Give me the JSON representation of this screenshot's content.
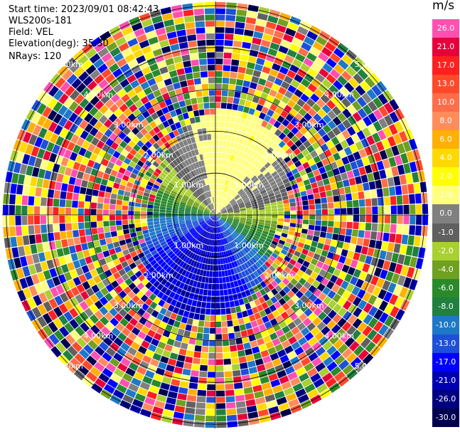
{
  "info": {
    "start_time": "Start time: 2023/09/01 08:42:43",
    "site": "WLS200s-181",
    "field": "Field: VEL",
    "elevation": "Elevation(deg): 35.30",
    "nrays": "NRays: 120"
  },
  "colorbar": {
    "unit": "m/s",
    "ticks": [
      "26.0",
      "21.0",
      "17.0",
      "13.0",
      "10.0",
      "8.0",
      "6.0",
      "4.0",
      "2.0",
      "1.0",
      "0.0",
      "-1.0",
      "-2.0",
      "-4.0",
      "-6.0",
      "-8.0",
      "-10.0",
      "-13.0",
      "-17.0",
      "-21.0",
      "-26.0",
      "-30.0"
    ],
    "colors": [
      "#ff4fb0",
      "#e8003a",
      "#ff2020",
      "#ff4a2a",
      "#ff6d4a",
      "#ff8c5a",
      "#ffb000",
      "#ffd800",
      "#ffff00",
      "#ffff80",
      "#808080",
      "#606060",
      "#a8d030",
      "#70a020",
      "#2a8a2a",
      "#208040",
      "#1e78c8",
      "#1e4fd8",
      "#0000ff",
      "#0000b0",
      "#000080",
      "#000050"
    ]
  },
  "ring_labels": [
    "1.00km",
    "2.00km",
    "3.00km",
    "4.00km",
    "5.00km"
  ],
  "chart_data": {
    "type": "heatmap",
    "field": "VEL",
    "units": "m/s",
    "nrays": 120,
    "range_rings_km": [
      1,
      2,
      3,
      4,
      5
    ],
    "max_range_km": 5.1,
    "color_range": [
      -30.0,
      26.0
    ],
    "pattern": "approaching velocities (blue/green) south-west, receding (red/orange) north; noisy random values beyond ~2.3 km"
  }
}
